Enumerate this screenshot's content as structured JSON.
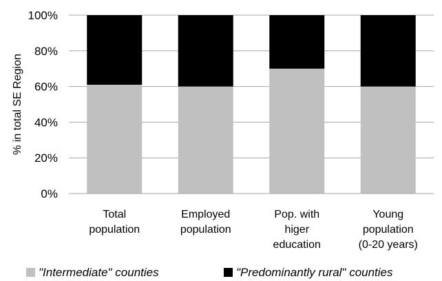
{
  "chart_data": {
    "type": "bar",
    "stacked": true,
    "categories": [
      [
        "Total",
        "population"
      ],
      [
        "Employed",
        "population"
      ],
      [
        "Pop. with",
        "higer",
        "education"
      ],
      [
        "Young",
        "population",
        "(0-20 years)"
      ]
    ],
    "series": [
      {
        "name": "\"Intermediate\" counties",
        "values": [
          61,
          60,
          70,
          60
        ],
        "color": "#c0c0c0"
      },
      {
        "name": "\"Predominantly rural\" counties",
        "values": [
          39,
          40,
          30,
          40
        ],
        "color": "#000000"
      }
    ],
    "ylabel": "% in  total SE Region",
    "yticks": [
      "0%",
      "20%",
      "40%",
      "60%",
      "80%",
      "100%"
    ],
    "ylim": [
      0,
      100
    ],
    "grid": true,
    "legend_position": "bottom"
  }
}
